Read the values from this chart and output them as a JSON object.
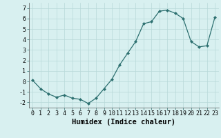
{
  "x": [
    0,
    1,
    2,
    3,
    4,
    5,
    6,
    7,
    8,
    9,
    10,
    11,
    12,
    13,
    14,
    15,
    16,
    17,
    18,
    19,
    20,
    21,
    22,
    23
  ],
  "y": [
    0.1,
    -0.7,
    -1.2,
    -1.5,
    -1.3,
    -1.6,
    -1.7,
    -2.1,
    -1.6,
    -0.7,
    0.2,
    1.6,
    2.7,
    3.8,
    5.5,
    5.7,
    6.7,
    6.8,
    6.5,
    6.0,
    3.8,
    3.3,
    3.4,
    6.1
  ],
  "xlabel": "Humidex (Indice chaleur)",
  "ylim": [
    -2.5,
    7.5
  ],
  "xlim": [
    -0.5,
    23.5
  ],
  "yticks": [
    -2,
    -1,
    0,
    1,
    2,
    3,
    4,
    5,
    6,
    7
  ],
  "xticks": [
    0,
    1,
    2,
    3,
    4,
    5,
    6,
    7,
    8,
    9,
    10,
    11,
    12,
    13,
    14,
    15,
    16,
    17,
    18,
    19,
    20,
    21,
    22,
    23
  ],
  "line_color": "#2d7070",
  "marker": "D",
  "marker_size": 2.0,
  "bg_color": "#d8f0f0",
  "grid_color": "#b8d8d8",
  "xlabel_fontsize": 7.5,
  "tick_fontsize": 6.0
}
